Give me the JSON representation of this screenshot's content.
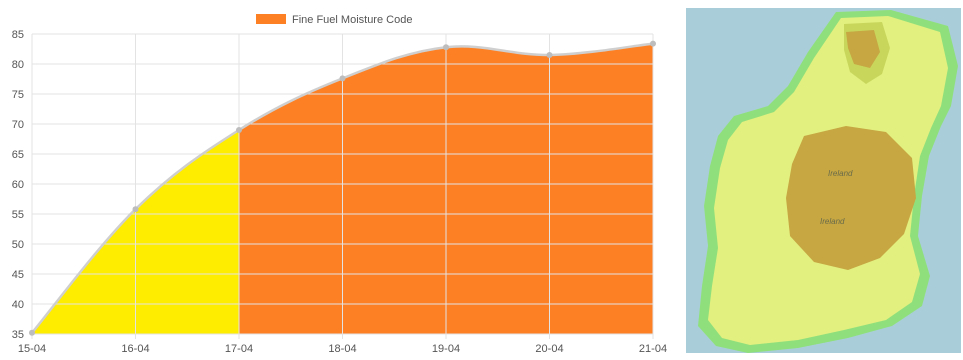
{
  "chart_data": {
    "type": "area",
    "x": [
      "15-04",
      "16-04",
      "17-04",
      "18-04",
      "19-04",
      "20-04",
      "21-04"
    ],
    "series": [
      {
        "name": "Fine Fuel Moisture Code",
        "values": [
          35.2,
          55.8,
          69.0,
          77.6,
          82.8,
          81.5,
          83.4
        ]
      }
    ],
    "legend_position": "top-center",
    "ylim": [
      35,
      85
    ],
    "y_ticks": [
      "35",
      "40",
      "45",
      "50",
      "55",
      "60",
      "65",
      "70",
      "75",
      "80",
      "85"
    ],
    "grid": true,
    "colors": {
      "low_fill": "#ffed00",
      "high_fill": "#fd8024",
      "legend_swatch": "#fd8024",
      "line": "#cfcfcf",
      "grid": "#e3e3e3",
      "point": "#bdbdbd"
    },
    "fill_split_x": "17-04"
  },
  "map": {
    "labels": [
      "Ireland",
      "Ireland"
    ],
    "colors": {
      "sea": "#a9ceda",
      "land_low": "#e2f07f",
      "land_mid": "#c8d75c",
      "land_high": "#c6a742",
      "coast_band": "#8fe07c"
    }
  }
}
